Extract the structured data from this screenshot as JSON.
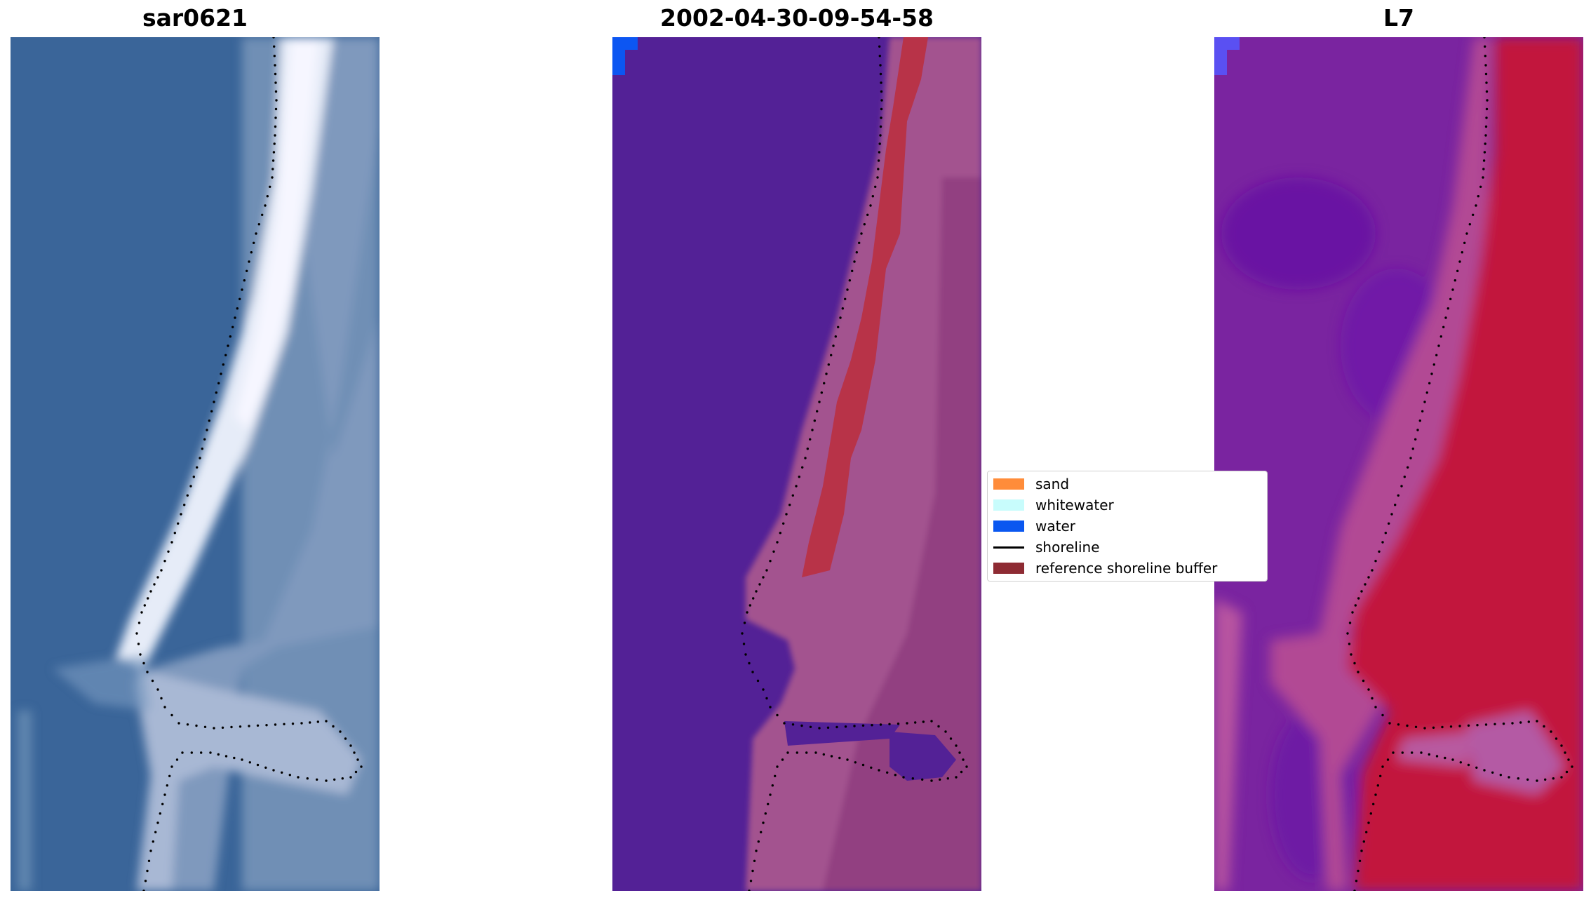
{
  "panels": [
    {
      "title": "sar0621",
      "image": "rgb-satellite-image"
    },
    {
      "title": "2002-04-30-09-54-58",
      "image": "classified-image-overlay"
    },
    {
      "title": "L7",
      "image": "spectral-index-image"
    }
  ],
  "legend": {
    "items": [
      {
        "label": "sand",
        "color": "#ff8c3a",
        "kind": "patch"
      },
      {
        "label": "whitewater",
        "color": "#c8fcfc",
        "kind": "patch"
      },
      {
        "label": "water",
        "color": "#0a57f0",
        "kind": "patch"
      },
      {
        "label": "shoreline",
        "color": "#000000",
        "kind": "line"
      },
      {
        "label": "reference shoreline buffer",
        "color": "#8e2b33",
        "kind": "patch"
      }
    ]
  }
}
